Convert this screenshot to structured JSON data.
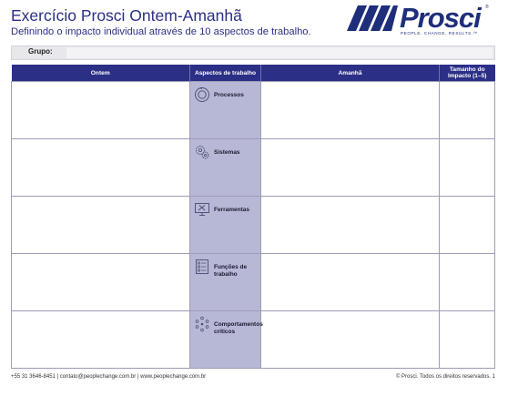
{
  "header": {
    "title": "Exercício Prosci Ontem-Amanhã",
    "subtitle": "Definindo o impacto individual através de 10 aspectos de trabalho."
  },
  "logo": {
    "wordmark": "Prosci",
    "registered": "®",
    "tagline": "PEOPLE. CHANGE. RESULTS.™",
    "color": "#1e2e7a"
  },
  "group": {
    "label": "Grupo:",
    "value": ""
  },
  "table": {
    "columns": [
      "Ontem",
      "Aspectos de trabalho",
      "Amanhã",
      "Tamanho do Impacto  (1–5)"
    ],
    "rows": [
      {
        "aspect": "Processos",
        "icon": "process-cycle-icon",
        "ontem": "",
        "amanha": "",
        "impacto": ""
      },
      {
        "aspect": "Sistemas",
        "icon": "gears-icon",
        "ontem": "",
        "amanha": "",
        "impacto": ""
      },
      {
        "aspect": "Ferramentas",
        "icon": "monitor-tools-icon",
        "ontem": "",
        "amanha": "",
        "impacto": ""
      },
      {
        "aspect": "Funções de trabalho",
        "icon": "job-list-icon",
        "ontem": "",
        "amanha": "",
        "impacto": ""
      },
      {
        "aspect": "Comportamentos críticos",
        "icon": "people-circle-icon",
        "ontem": "",
        "amanha": "",
        "impacto": ""
      }
    ],
    "header_color": "#2b2f86",
    "aspect_color": "#b7b7d6"
  },
  "footer": {
    "contact": "+55 31 3646-8451  |  contato@peoplechange.com.br  |  www.peoplechange.com.br",
    "rights": "© Prosci. Todos os direitos reservados.   1"
  }
}
